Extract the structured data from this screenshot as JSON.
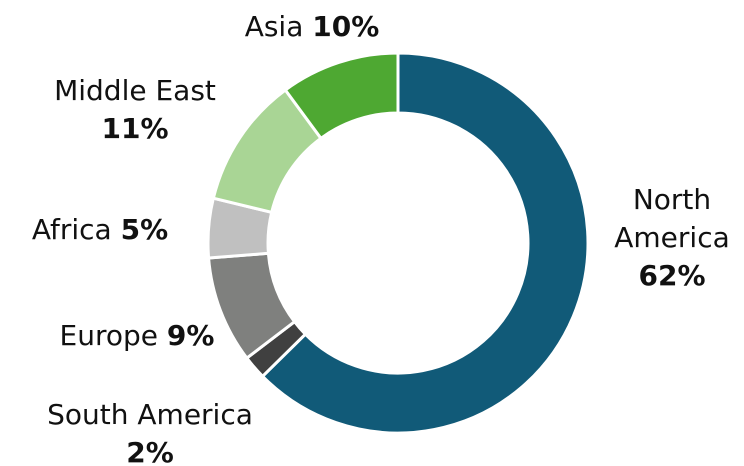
{
  "chart_data": {
    "type": "donut",
    "categories": [
      "North America",
      "South America",
      "Europe",
      "Africa",
      "Middle East",
      "Asia"
    ],
    "values": [
      62,
      2,
      9,
      5,
      11,
      10
    ],
    "value_labels": [
      "62%",
      "2%",
      "9%",
      "5%",
      "11%",
      "10%"
    ],
    "colors": [
      "#115a78",
      "#404040",
      "#7f807e",
      "#c0c0c0",
      "#a9d595",
      "#4ea832"
    ]
  }
}
